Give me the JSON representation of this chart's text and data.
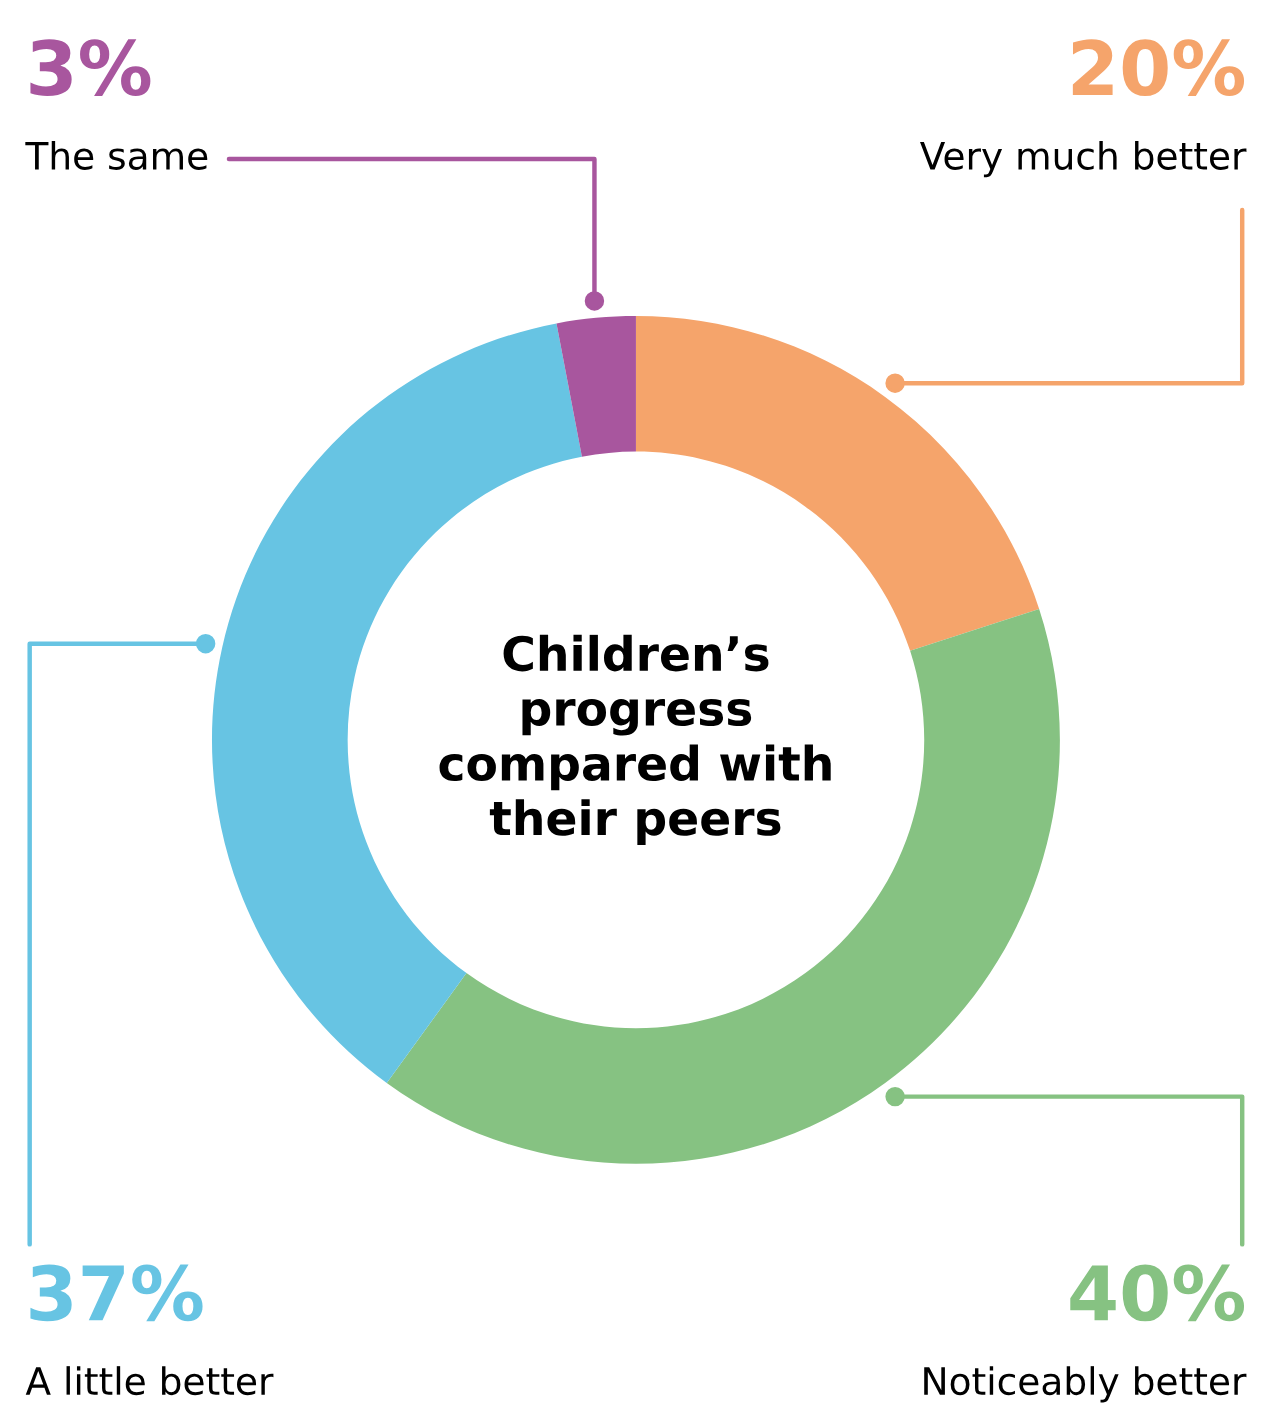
{
  "chart_data": {
    "type": "donut",
    "title": "Children’s\nprogress\ncompared with\ntheir peers",
    "categories": [
      "Very much better",
      "Noticeably better",
      "A little better",
      "The same"
    ],
    "values": [
      20,
      40,
      37,
      3
    ],
    "colors": [
      "#f5a46b",
      "#86c282",
      "#67c4e3",
      "#a8569e"
    ],
    "value_labels": [
      "20%",
      "40%",
      "37%",
      "3%"
    ]
  }
}
